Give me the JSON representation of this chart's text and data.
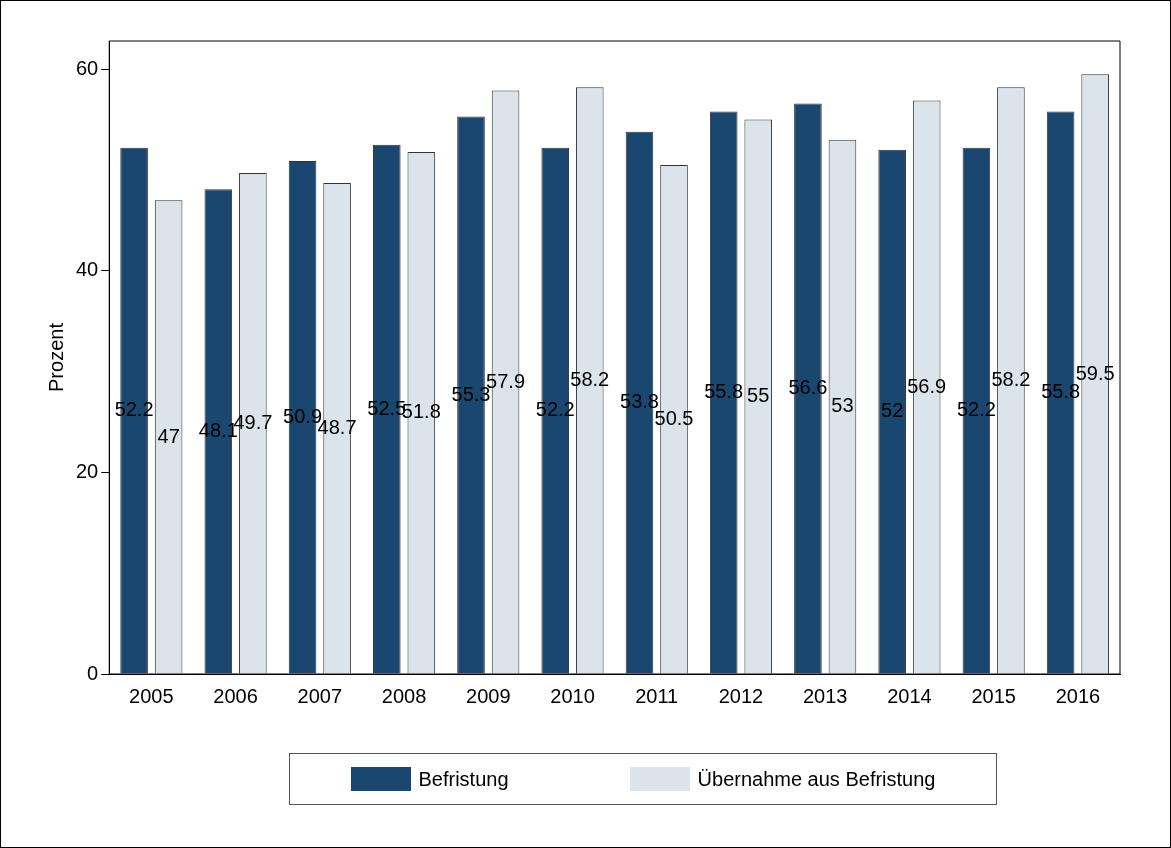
{
  "chart_data": {
    "type": "bar",
    "ylabel": "Prozent",
    "categories": [
      "2005",
      "2006",
      "2007",
      "2008",
      "2009",
      "2010",
      "2011",
      "2012",
      "2013",
      "2014",
      "2015",
      "2016"
    ],
    "series": [
      {
        "name": "Befristung",
        "color": "#1a476f",
        "values": [
          52.2,
          48.1,
          50.9,
          52.5,
          55.3,
          52.2,
          53.8,
          55.8,
          56.6,
          52,
          52.2,
          55.8
        ]
      },
      {
        "name": "Übernahme aus Befristung",
        "color": "#dae4ea",
        "values": [
          47,
          49.7,
          48.7,
          51.8,
          57.9,
          58.2,
          50.5,
          55,
          53,
          56.9,
          58.2,
          59.5
        ]
      }
    ],
    "ylim": [
      0,
      62.8
    ],
    "yticks": [
      0,
      20,
      40,
      60
    ],
    "grid": false,
    "legend": "bottom",
    "data_labels": true
  }
}
